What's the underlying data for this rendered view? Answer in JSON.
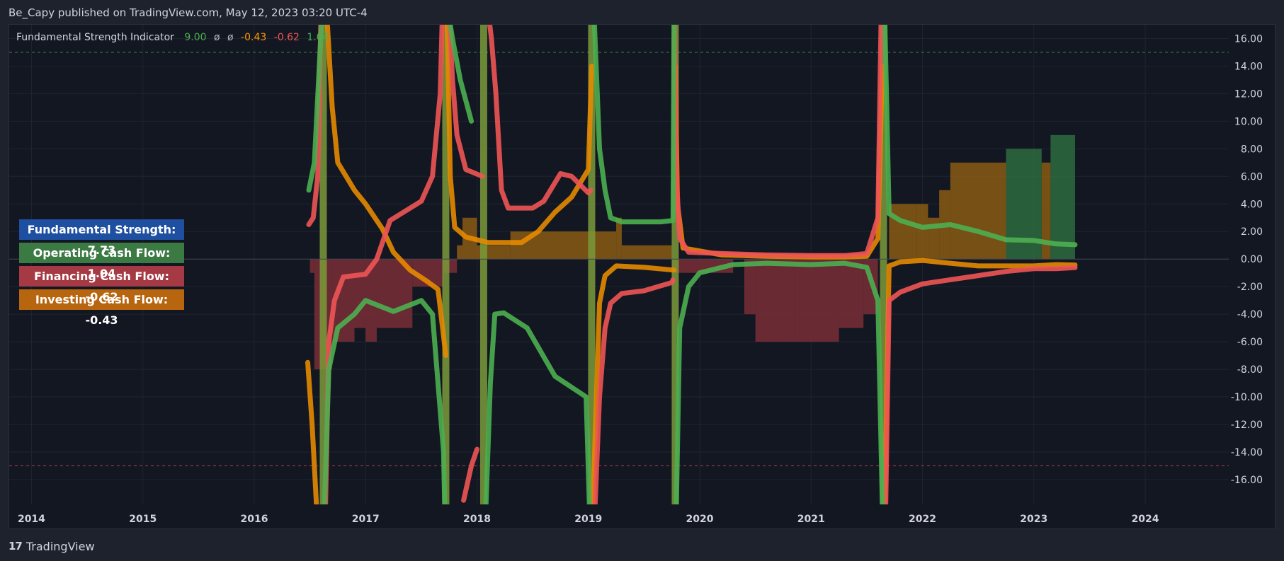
{
  "header": {
    "attribution": "Be_Capy published on TradingView.com, May 12, 2023 03:20 UTC-4"
  },
  "legend": {
    "name": "Fundamental Strength Indicator",
    "values": [
      {
        "text": "9.00",
        "color": "#4caf50"
      },
      {
        "text": "ø",
        "color": "#b2b5be"
      },
      {
        "text": "ø",
        "color": "#b2b5be"
      },
      {
        "text": "-0.43",
        "color": "#ff9800"
      },
      {
        "text": "-0.62",
        "color": "#f05454"
      },
      {
        "text": "1.04",
        "color": "#4caf50"
      }
    ]
  },
  "info_boxes": [
    {
      "label": "Fundamental Strength: 7.73",
      "color": "#1e4fa0"
    },
    {
      "label": "Operating Cash Flow: 1.04",
      "color": "#3c7a44"
    },
    {
      "label": "Financing Cash Flow: -0.62",
      "color": "#a63a44"
    },
    {
      "label": "Investing Cash Flow: -0.43",
      "color": "#b8650f"
    }
  ],
  "footer": {
    "logo_glyph": "17",
    "brand": "TradingView"
  },
  "colors": {
    "operating": "#4caf50",
    "financing": "#f05454",
    "investing": "#e68a00",
    "hist_investing": "#8a5a14",
    "hist_financing": "#7a2e36",
    "hist_operating": "#2e6b3e",
    "upper_band": "#4caf50",
    "lower_band": "#f05454",
    "grid": "#1f2431",
    "axis_text": "#d1d4dc"
  },
  "chart_data": {
    "type": "line",
    "title": "Fundamental Strength Indicator",
    "xlim": [
      2013.8,
      2024.75
    ],
    "ylim": [
      -17.8,
      17.0
    ],
    "x_ticks": [
      "2014",
      "2015",
      "2016",
      "2017",
      "2018",
      "2019",
      "2020",
      "2021",
      "2022",
      "2023",
      "2024"
    ],
    "y_ticks": [
      "16.00",
      "14.00",
      "12.00",
      "10.00",
      "8.00",
      "6.00",
      "4.00",
      "2.00",
      "0.00",
      "-2.00",
      "-4.00",
      "-6.00",
      "-8.00",
      "-10.00",
      "-12.00",
      "-14.00",
      "-16.00"
    ],
    "bands": {
      "upper": 15,
      "lower": -15
    },
    "histogram": [
      {
        "x0": 2016.5,
        "x1": 2016.54,
        "v": -1,
        "kind": "financing"
      },
      {
        "x0": 2016.54,
        "x1": 2016.7,
        "v": -8,
        "kind": "financing"
      },
      {
        "x0": 2016.7,
        "x1": 2016.9,
        "v": -6,
        "kind": "financing"
      },
      {
        "x0": 2016.9,
        "x1": 2017.0,
        "v": -5,
        "kind": "financing"
      },
      {
        "x0": 2017.0,
        "x1": 2017.1,
        "v": -6,
        "kind": "financing"
      },
      {
        "x0": 2017.1,
        "x1": 2017.25,
        "v": -5,
        "kind": "financing"
      },
      {
        "x0": 2017.25,
        "x1": 2017.42,
        "v": -5,
        "kind": "financing"
      },
      {
        "x0": 2017.42,
        "x1": 2017.7,
        "v": -2,
        "kind": "financing"
      },
      {
        "x0": 2017.7,
        "x1": 2017.82,
        "v": -1,
        "kind": "financing"
      },
      {
        "x0": 2017.82,
        "x1": 2017.87,
        "v": 1,
        "kind": "investing"
      },
      {
        "x0": 2017.87,
        "x1": 2018.0,
        "v": 3,
        "kind": "investing"
      },
      {
        "x0": 2018.0,
        "x1": 2018.3,
        "v": 1,
        "kind": "investing"
      },
      {
        "x0": 2018.3,
        "x1": 2019.0,
        "v": 2,
        "kind": "investing"
      },
      {
        "x0": 2019.0,
        "x1": 2019.25,
        "v": 2,
        "kind": "investing"
      },
      {
        "x0": 2019.25,
        "x1": 2019.3,
        "v": 3,
        "kind": "investing"
      },
      {
        "x0": 2019.3,
        "x1": 2019.75,
        "v": 1,
        "kind": "investing"
      },
      {
        "x0": 2019.75,
        "x1": 2020.3,
        "v": -1,
        "kind": "financing"
      },
      {
        "x0": 2020.4,
        "x1": 2020.5,
        "v": -4,
        "kind": "financing"
      },
      {
        "x0": 2020.5,
        "x1": 2020.85,
        "v": -6,
        "kind": "financing"
      },
      {
        "x0": 2020.85,
        "x1": 2021.25,
        "v": -6,
        "kind": "financing"
      },
      {
        "x0": 2021.25,
        "x1": 2021.47,
        "v": -5,
        "kind": "financing"
      },
      {
        "x0": 2021.47,
        "x1": 2021.6,
        "v": -4,
        "kind": "financing"
      },
      {
        "x0": 2021.7,
        "x1": 2021.95,
        "v": 4,
        "kind": "investing"
      },
      {
        "x0": 2021.95,
        "x1": 2022.05,
        "v": 4,
        "kind": "investing"
      },
      {
        "x0": 2022.05,
        "x1": 2022.15,
        "v": 3,
        "kind": "investing"
      },
      {
        "x0": 2022.15,
        "x1": 2022.25,
        "v": 5,
        "kind": "investing"
      },
      {
        "x0": 2022.25,
        "x1": 2022.75,
        "v": 7,
        "kind": "investing"
      },
      {
        "x0": 2022.75,
        "x1": 2023.07,
        "v": 8,
        "kind": "operating"
      },
      {
        "x0": 2023.07,
        "x1": 2023.15,
        "v": 7,
        "kind": "investing"
      },
      {
        "x0": 2023.15,
        "x1": 2023.37,
        "v": 9,
        "kind": "operating"
      }
    ],
    "spikes": [
      2016.62,
      2017.72,
      2018.06,
      2019.03,
      2019.78,
      2021.65
    ],
    "series": [
      {
        "name": "Operating Cash Flow",
        "kind": "operating",
        "segments": [
          [
            [
              2016.49,
              5
            ],
            [
              2016.54,
              7
            ],
            [
              2016.59,
              15
            ],
            [
              2016.61,
              18
            ]
          ],
          [
            [
              2016.63,
              -18
            ],
            [
              2016.67,
              -8
            ],
            [
              2016.75,
              -5
            ],
            [
              2016.9,
              -4
            ],
            [
              2017.0,
              -3
            ],
            [
              2017.25,
              -3.8
            ],
            [
              2017.5,
              -3
            ],
            [
              2017.6,
              -4
            ],
            [
              2017.7,
              -14
            ],
            [
              2017.71,
              -18
            ]
          ],
          [
            [
              2017.74,
              18
            ],
            [
              2017.78,
              16
            ],
            [
              2017.85,
              13
            ],
            [
              2017.95,
              10
            ]
          ],
          [
            [
              2018.08,
              -18
            ],
            [
              2018.12,
              -9
            ],
            [
              2018.16,
              -4
            ],
            [
              2018.24,
              -3.9
            ],
            [
              2018.45,
              -5
            ],
            [
              2018.7,
              -8.5
            ],
            [
              2018.98,
              -10
            ],
            [
              2019.01,
              -18
            ]
          ],
          [
            [
              2019.05,
              18
            ],
            [
              2019.1,
              8
            ],
            [
              2019.15,
              5
            ],
            [
              2019.2,
              3
            ],
            [
              2019.3,
              2.7
            ],
            [
              2019.65,
              2.7
            ],
            [
              2019.76,
              2.8
            ],
            [
              2019.77,
              18
            ]
          ],
          [
            [
              2019.79,
              -18
            ],
            [
              2019.82,
              -5
            ],
            [
              2019.9,
              -2
            ],
            [
              2020.0,
              -1
            ],
            [
              2020.3,
              -0.4
            ],
            [
              2020.6,
              -0.3
            ],
            [
              2021.0,
              -0.4
            ],
            [
              2021.3,
              -0.3
            ],
            [
              2021.5,
              -0.6
            ],
            [
              2021.6,
              -3
            ],
            [
              2021.64,
              -18
            ]
          ],
          [
            [
              2021.66,
              18
            ],
            [
              2021.7,
              3.3
            ],
            [
              2021.8,
              2.8
            ],
            [
              2022.0,
              2.3
            ],
            [
              2022.25,
              2.5
            ],
            [
              2022.5,
              2
            ],
            [
              2022.75,
              1.4
            ],
            [
              2023.0,
              1.35
            ],
            [
              2023.2,
              1.1
            ],
            [
              2023.37,
              1.04
            ]
          ]
        ]
      },
      {
        "name": "Financing Cash Flow",
        "kind": "financing",
        "segments": [
          [
            [
              2016.49,
              2.5
            ],
            [
              2016.53,
              3
            ],
            [
              2016.57,
              6
            ],
            [
              2016.6,
              18
            ]
          ],
          [
            [
              2016.64,
              -18
            ],
            [
              2016.67,
              -6
            ],
            [
              2016.72,
              -3
            ],
            [
              2016.8,
              -1.3
            ],
            [
              2017.0,
              -1.1
            ],
            [
              2017.1,
              0
            ],
            [
              2017.22,
              2.8
            ],
            [
              2017.5,
              4.2
            ],
            [
              2017.6,
              6
            ],
            [
              2017.67,
              12
            ],
            [
              2017.69,
              18
            ]
          ],
          [
            [
              2017.75,
              18
            ],
            [
              2017.78,
              13
            ],
            [
              2017.82,
              9
            ],
            [
              2017.9,
              6.5
            ],
            [
              2018.05,
              6
            ]
          ],
          [
            [
              2017.88,
              -17.5
            ],
            [
              2017.95,
              -15
            ],
            [
              2018.0,
              -13.8
            ]
          ],
          [
            [
              2018.1,
              18
            ],
            [
              2018.13,
              16
            ],
            [
              2018.17,
              12
            ],
            [
              2018.22,
              5
            ],
            [
              2018.28,
              3.7
            ],
            [
              2018.5,
              3.7
            ],
            [
              2018.6,
              4.2
            ],
            [
              2018.75,
              6.2
            ],
            [
              2018.85,
              6
            ],
            [
              2019.0,
              4.8
            ],
            [
              2019.02,
              5
            ]
          ],
          [
            [
              2019.06,
              -18
            ],
            [
              2019.1,
              -10
            ],
            [
              2019.15,
              -5
            ],
            [
              2019.2,
              -3.2
            ],
            [
              2019.3,
              -2.5
            ],
            [
              2019.5,
              -2.3
            ],
            [
              2019.75,
              -1.7
            ],
            [
              2019.76,
              -1.5
            ]
          ],
          [
            [
              2019.77,
              18
            ],
            [
              2019.79,
              6
            ],
            [
              2019.82,
              1.5
            ],
            [
              2019.9,
              0.5
            ],
            [
              2020.2,
              0.4
            ],
            [
              2020.6,
              0.3
            ],
            [
              2021.0,
              0.25
            ],
            [
              2021.3,
              0.25
            ],
            [
              2021.5,
              0.4
            ],
            [
              2021.6,
              3
            ],
            [
              2021.63,
              18
            ]
          ],
          [
            [
              2021.67,
              -18
            ],
            [
              2021.7,
              -3
            ],
            [
              2021.8,
              -2.4
            ],
            [
              2022.0,
              -1.8
            ],
            [
              2022.25,
              -1.5
            ],
            [
              2022.5,
              -1.2
            ],
            [
              2022.75,
              -0.9
            ],
            [
              2023.0,
              -0.7
            ],
            [
              2023.2,
              -0.7
            ],
            [
              2023.37,
              -0.62
            ]
          ]
        ]
      },
      {
        "name": "Investing Cash Flow",
        "kind": "investing",
        "segments": [
          [
            [
              2016.48,
              -7.5
            ],
            [
              2016.52,
              -12
            ],
            [
              2016.56,
              -18
            ]
          ],
          [
            [
              2016.65,
              18
            ],
            [
              2016.7,
              11
            ],
            [
              2016.75,
              7
            ],
            [
              2016.9,
              5
            ],
            [
              2017.0,
              4
            ],
            [
              2017.15,
              2.2
            ],
            [
              2017.25,
              0.5
            ],
            [
              2017.4,
              -0.8
            ],
            [
              2017.55,
              -1.6
            ],
            [
              2017.65,
              -2.2
            ],
            [
              2017.72,
              -7
            ]
          ],
          [
            [
              2017.73,
              18
            ],
            [
              2017.76,
              6
            ],
            [
              2017.8,
              2.3
            ],
            [
              2017.9,
              1.6
            ],
            [
              2018.1,
              1.2
            ],
            [
              2018.4,
              1.2
            ],
            [
              2018.55,
              2
            ],
            [
              2018.7,
              3.4
            ],
            [
              2018.85,
              4.5
            ],
            [
              2019.0,
              6.5
            ],
            [
              2019.03,
              14
            ]
          ],
          [
            [
              2019.04,
              -18
            ],
            [
              2019.1,
              -3.2
            ],
            [
              2019.15,
              -1.2
            ],
            [
              2019.25,
              -0.5
            ],
            [
              2019.5,
              -0.6
            ],
            [
              2019.77,
              -0.8
            ]
          ],
          [
            [
              2019.78,
              14
            ],
            [
              2019.8,
              4
            ],
            [
              2019.85,
              0.8
            ],
            [
              2020.2,
              0.3
            ],
            [
              2020.6,
              0.2
            ],
            [
              2021.0,
              0.15
            ],
            [
              2021.3,
              0.15
            ],
            [
              2021.5,
              0.2
            ],
            [
              2021.6,
              1.5
            ],
            [
              2021.64,
              14
            ]
          ],
          [
            [
              2021.66,
              -18
            ],
            [
              2021.7,
              -0.5
            ],
            [
              2021.8,
              -0.2
            ],
            [
              2022.0,
              -0.1
            ],
            [
              2022.25,
              -0.3
            ],
            [
              2022.5,
              -0.5
            ],
            [
              2022.75,
              -0.5
            ],
            [
              2023.0,
              -0.5
            ],
            [
              2023.2,
              -0.4
            ],
            [
              2023.37,
              -0.43
            ]
          ]
        ]
      }
    ]
  }
}
